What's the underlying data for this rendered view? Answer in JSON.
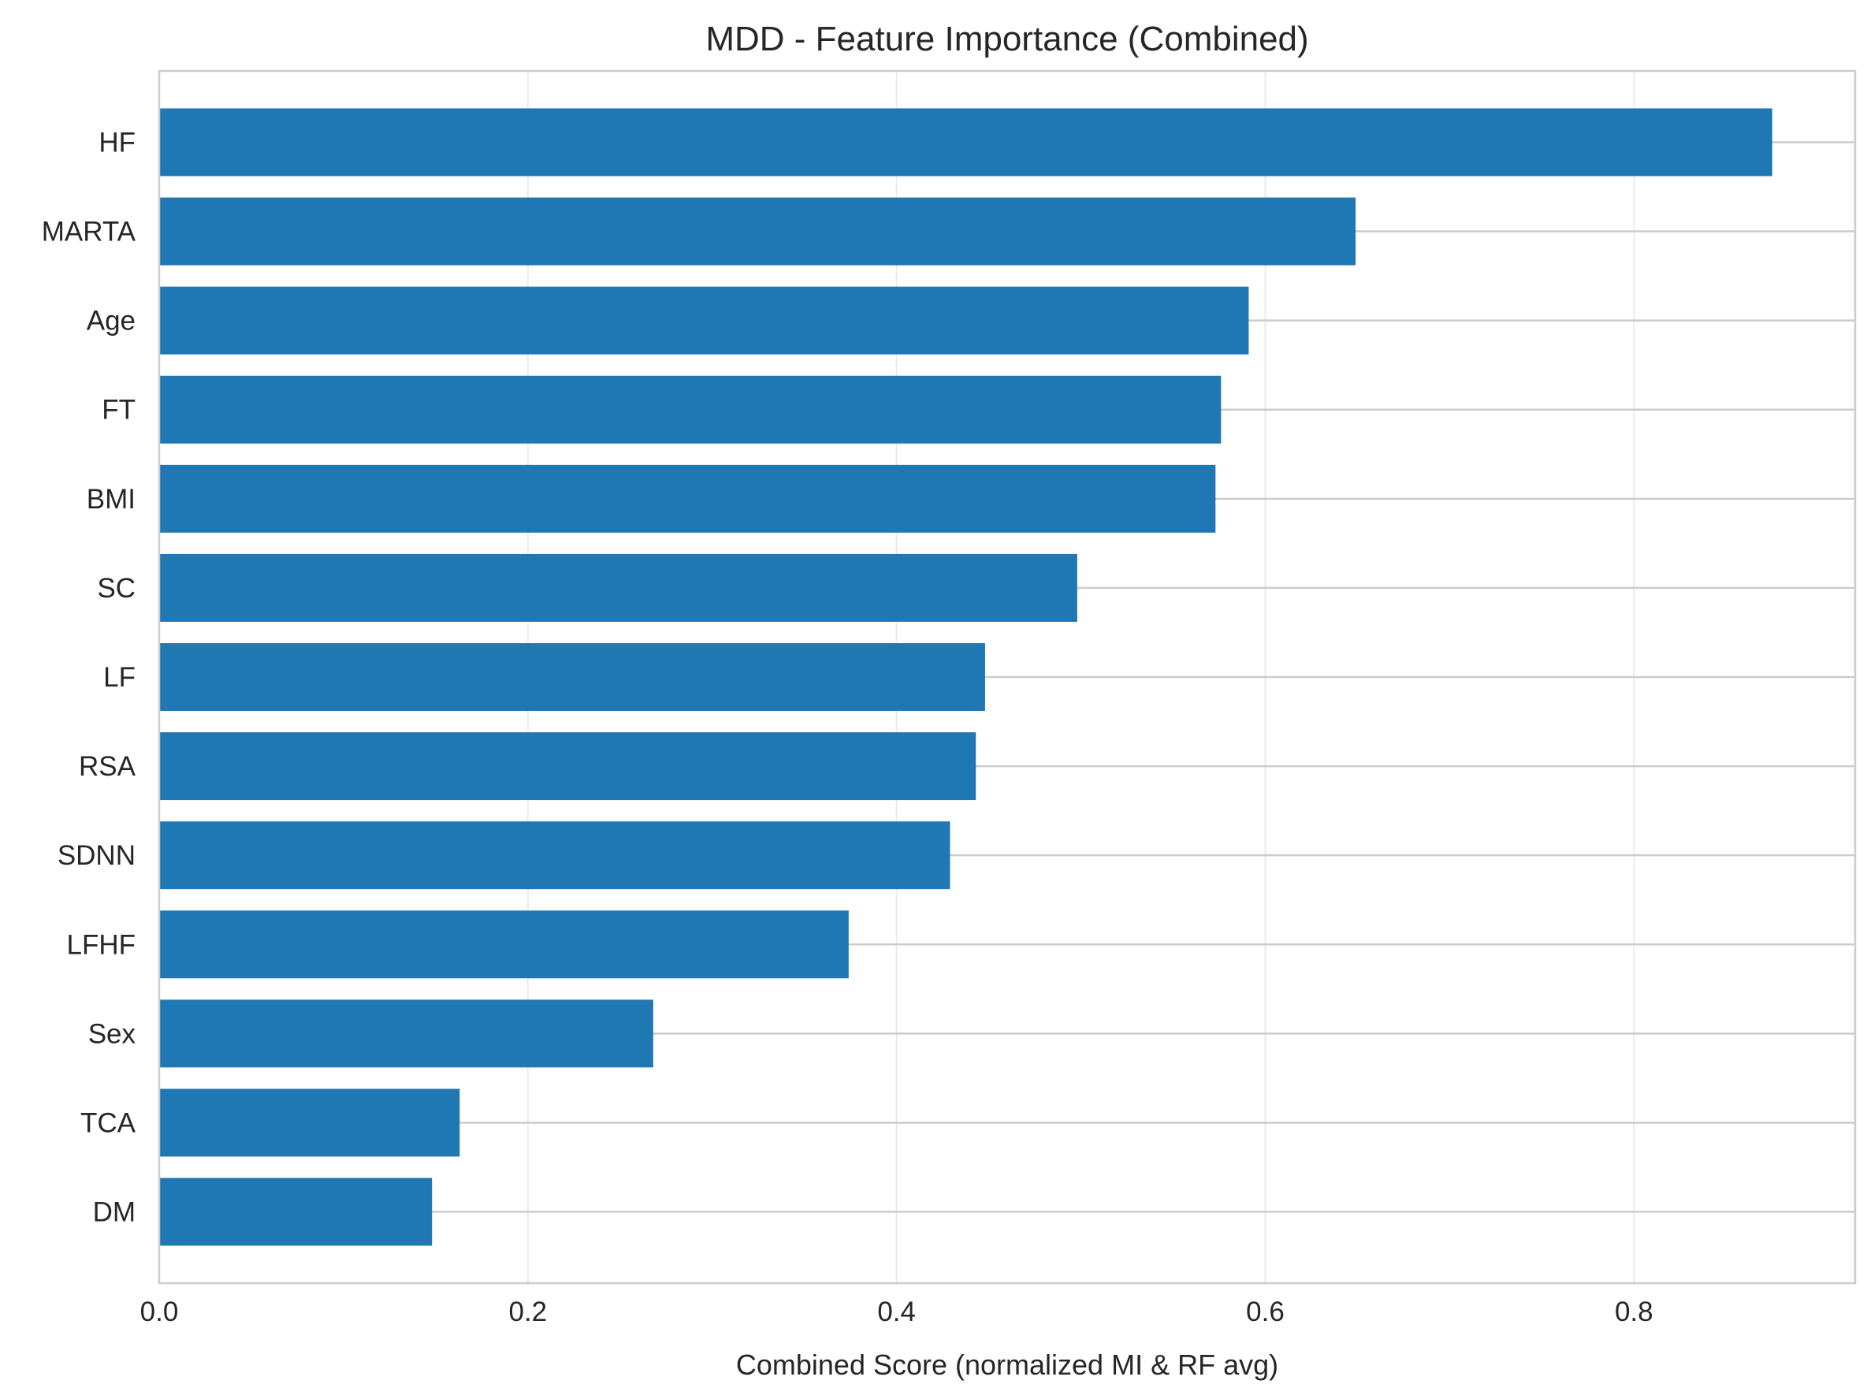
{
  "chart_data": {
    "type": "bar",
    "orientation": "horizontal",
    "title": "MDD - Feature Importance (Combined)",
    "xlabel": "Combined Score (normalized MI & RF avg)",
    "ylabel": "",
    "xlim": [
      0.0,
      0.92
    ],
    "x_ticks": [
      0.0,
      0.2,
      0.4,
      0.6,
      0.8
    ],
    "x_tick_labels": [
      "0.0",
      "0.2",
      "0.4",
      "0.6",
      "0.8"
    ],
    "grid": true,
    "legend": "none",
    "color": "#1f77b4",
    "categories": [
      "HF",
      "MARTA",
      "Age",
      "FT",
      "BMI",
      "SC",
      "LF",
      "RSA",
      "SDNN",
      "LFHF",
      "Sex",
      "TCA",
      "DM"
    ],
    "values": [
      0.875,
      0.649,
      0.591,
      0.576,
      0.573,
      0.498,
      0.448,
      0.443,
      0.429,
      0.374,
      0.268,
      0.163,
      0.148
    ]
  }
}
